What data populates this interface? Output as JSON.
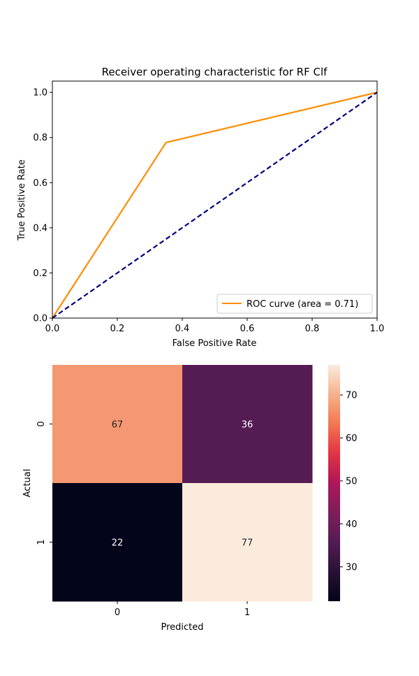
{
  "chart_data": [
    {
      "type": "line",
      "title": "Receiver operating characteristic for RF Clf",
      "xlabel": "False Positive Rate",
      "ylabel": "True Positive Rate",
      "xlim": [
        0.0,
        1.0
      ],
      "ylim": [
        0.0,
        1.05
      ],
      "x_ticks": [
        "0.0",
        "0.2",
        "0.4",
        "0.6",
        "0.8",
        "1.0"
      ],
      "y_ticks": [
        "0.0",
        "0.2",
        "0.4",
        "0.6",
        "0.8",
        "1.0"
      ],
      "grid": false,
      "legend_position": "lower right",
      "series": [
        {
          "name": "ROC curve (area = 0.71)",
          "color": "#ff8c00",
          "style": "solid",
          "x": [
            0.0,
            0.35,
            1.0
          ],
          "y": [
            0.0,
            0.778,
            1.0
          ]
        },
        {
          "color": "#000080",
          "style": "dashed",
          "x": [
            0.0,
            1.0
          ],
          "y": [
            0.0,
            1.0
          ]
        }
      ]
    },
    {
      "type": "heatmap",
      "xlabel": "Predicted",
      "ylabel": "Actual",
      "x_categories": [
        "0",
        "1"
      ],
      "y_categories": [
        "0",
        "1"
      ],
      "values": [
        [
          67,
          36
        ],
        [
          22,
          77
        ]
      ],
      "colormap": "rocket",
      "colorbar": {
        "min": 22,
        "max": 77,
        "ticks": [
          "30",
          "40",
          "50",
          "60",
          "70"
        ]
      }
    }
  ]
}
